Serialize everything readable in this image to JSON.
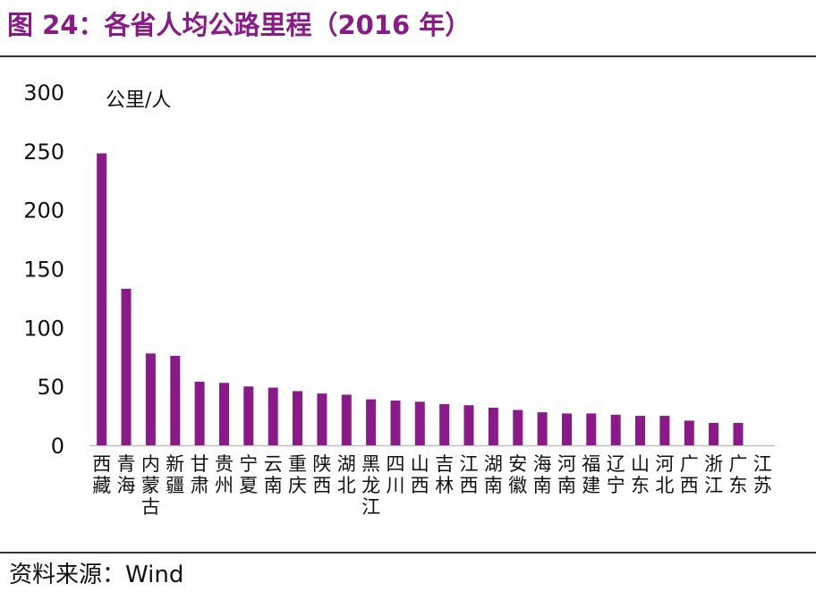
{
  "title": "图 24：各省人均公路里程（2016 年）",
  "source": "资料来源：Wind",
  "colors": {
    "bar": "#8B1A89",
    "title": "#8B1A89",
    "axis": "#bfbfbf"
  },
  "chart_data": {
    "type": "bar",
    "title": "图 24：各省人均公路里程（2016 年）",
    "ylabel": "公里/人",
    "xlabel": "",
    "ylim": [
      0,
      300
    ],
    "yticks": [
      0,
      50,
      100,
      150,
      200,
      250,
      300
    ],
    "grid": false,
    "legend": "none",
    "categories": [
      "西藏",
      "青海",
      "内蒙古",
      "新疆",
      "甘肃",
      "贵州",
      "宁夏",
      "云南",
      "重庆",
      "陕西",
      "湖北",
      "黑龙江",
      "四川",
      "山西",
      "吉林",
      "江西",
      "湖南",
      "安徽",
      "海南",
      "河南",
      "福建",
      "辽宁",
      "山东",
      "河北",
      "广西",
      "浙江",
      "广东",
      "江苏"
    ],
    "values": [
      248,
      133,
      78,
      76,
      54,
      53,
      50,
      49,
      46,
      44,
      43,
      39,
      38,
      37,
      35,
      34,
      32,
      30,
      28,
      27,
      27,
      26,
      25,
      25,
      21,
      19,
      19,
      0
    ]
  }
}
